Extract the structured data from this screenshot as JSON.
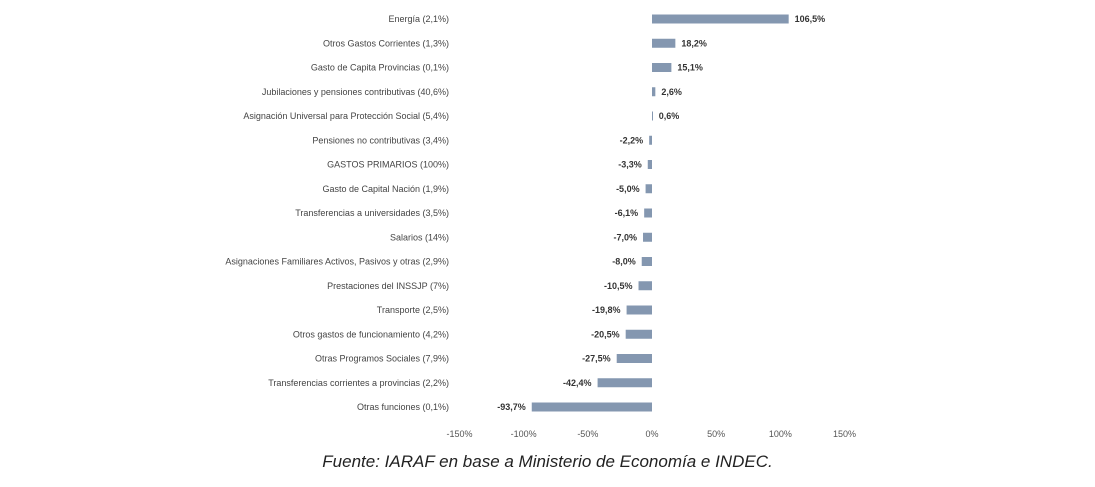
{
  "chart_data": {
    "type": "bar",
    "orientation": "horizontal",
    "categories": [
      "Energía (2,1%)",
      "Otros Gastos Corrientes      (1,3%)",
      "Gasto de Capita Provincias (0,1%)",
      "Jubilaciones y pensiones contributivas (40,6%)",
      "Asignación Universal para Protección Social (5,4%)",
      "Pensiones no contributivas (3,4%)",
      "GASTOS PRIMARIOS (100%)",
      "Gasto de Capital Nación (1,9%)",
      "Transferencias a universidades (3,5%)",
      "Salarios (14%)",
      "Asignaciones Familiares Activos, Pasivos y otras (2,9%)",
      "Prestaciones del INSSJP (7%)",
      "Transporte (2,5%)",
      "Otros gastos de funcionamiento (4,2%)",
      "Otras Programos Sociales (7,9%)",
      "Transferencias corrientes a provincias (2,2%)",
      "Otras funciones  (0,1%)"
    ],
    "values": [
      106.5,
      18.2,
      15.1,
      2.6,
      0.6,
      -2.2,
      -3.3,
      -5.0,
      -6.1,
      -7.0,
      -8.0,
      -10.5,
      -19.8,
      -20.5,
      -27.5,
      -42.4,
      -93.7
    ],
    "value_labels": [
      "106,5%",
      "18,2%",
      "15,1%",
      "2,6%",
      "0,6%",
      "-2,2%",
      "-3,3%",
      "-5,0%",
      "-6,1%",
      "-7,0%",
      "-8,0%",
      "-10,5%",
      "-19,8%",
      "-20,5%",
      "-27,5%",
      "-42,4%",
      "-93,7%"
    ],
    "xlim": [
      -150,
      150
    ],
    "x_ticks": [
      -150,
      -100,
      -50,
      0,
      50,
      100,
      150
    ],
    "x_tick_labels": [
      "-150%",
      "-100%",
      "-50%",
      "0%",
      "50%",
      "100%",
      "150%"
    ],
    "grid": false,
    "bar_color": "#8497B0"
  },
  "caption": "Fuente: IARAF en base a Ministerio de Economía e INDEC."
}
